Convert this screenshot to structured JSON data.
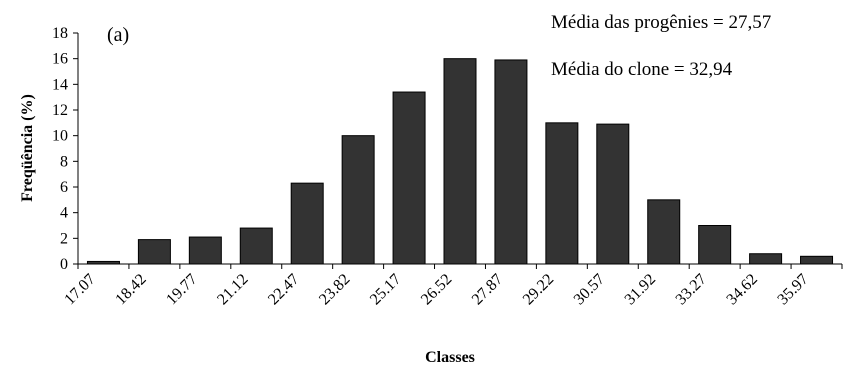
{
  "chart_data": {
    "type": "bar",
    "panel_label": "(a)",
    "xlabel": "Classes",
    "ylabel": "Freqüência (%)",
    "ylim": [
      0,
      18
    ],
    "yticks": [
      0,
      2,
      4,
      6,
      8,
      10,
      12,
      14,
      16,
      18
    ],
    "categories": [
      "17.07",
      "18.42",
      "19.77",
      "21.12",
      "22.47",
      "23.82",
      "25.17",
      "26.52",
      "27.87",
      "29.22",
      "30.57",
      "31.92",
      "33.27",
      "34.62",
      "35.97"
    ],
    "values": [
      0.2,
      1.9,
      2.1,
      2.8,
      6.3,
      10.0,
      13.4,
      16.0,
      15.9,
      11.0,
      10.9,
      5.0,
      3.0,
      0.8,
      0.6
    ],
    "bar_color": "#333333",
    "grid": false,
    "annotations": [
      "Média das progênies = 27,57",
      "Média do clone = 32,94"
    ]
  }
}
